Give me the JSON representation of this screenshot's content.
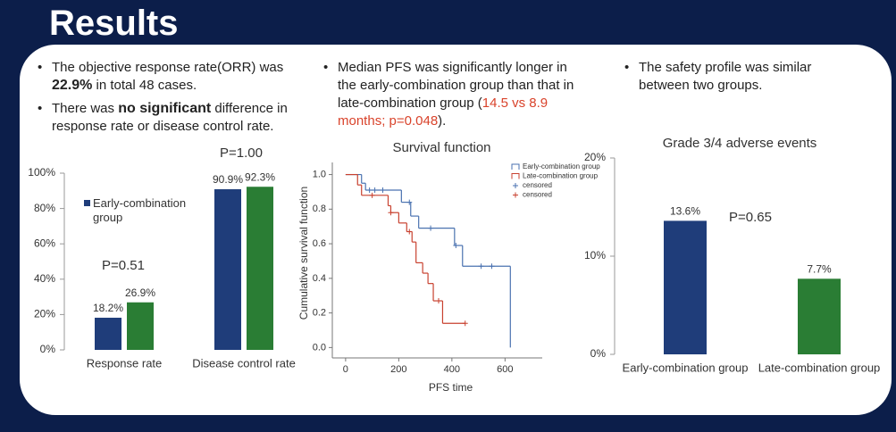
{
  "slide": {
    "title": "Results",
    "columns": [
      [
        {
          "segments": [
            {
              "text": "The objective response rate(ORR) was "
            },
            {
              "text": "22.9%",
              "bold": true
            },
            {
              "text": " in total 48 cases."
            }
          ]
        },
        {
          "segments": [
            {
              "text": "There was "
            },
            {
              "text": "no significant",
              "bold": true
            },
            {
              "text": " difference in response rate or disease control rate."
            }
          ]
        }
      ],
      [
        {
          "segments": [
            {
              "text": "Median PFS was significantly longer in the early-combination group than that in late-combination group ("
            },
            {
              "text": "14.5 vs 8.9 months; p=0.048",
              "color": "#d9432b"
            },
            {
              "text": ")."
            }
          ]
        }
      ],
      [
        {
          "segments": [
            {
              "text": "The safety profile was similar between two groups."
            }
          ]
        }
      ]
    ]
  },
  "chart_data": [
    {
      "type": "bar",
      "categories": [
        "Response rate",
        "Disease control rate"
      ],
      "series": [
        {
          "name": "Early-combination group",
          "color": "#1f3d7a",
          "values": [
            18.2,
            90.9
          ],
          "value_labels": [
            "18.2%",
            "90.9%"
          ]
        },
        {
          "color": "#2a7d34",
          "values": [
            26.9,
            92.3
          ],
          "value_labels": [
            "26.9%",
            "92.3%"
          ]
        }
      ],
      "ylim": [
        0,
        100
      ],
      "yticks": [
        {
          "value": 0,
          "label": "0%"
        },
        {
          "value": 20,
          "label": "20%"
        },
        {
          "value": 40,
          "label": "40%"
        },
        {
          "value": 60,
          "label": "60%"
        },
        {
          "value": 80,
          "label": "80%"
        },
        {
          "value": 100,
          "label": "100%"
        }
      ],
      "annotations": [
        "P=0.51",
        "P=1.00"
      ],
      "grid": false
    },
    {
      "type": "line",
      "title": "Survival function",
      "xlabel": "PFS time",
      "ylabel": "Cumulative survival function",
      "series": [
        {
          "name": "Early-combination group",
          "color": "#4a72b0",
          "style": "step",
          "x": [
            0,
            60,
            75,
            210,
            245,
            275,
            410,
            440,
            620
          ],
          "values": [
            1.0,
            0.95,
            0.91,
            0.84,
            0.76,
            0.69,
            0.59,
            0.47,
            0.0
          ]
        },
        {
          "name": "Late-combination group",
          "color": "#c8412f",
          "style": "step",
          "x": [
            0,
            45,
            60,
            160,
            170,
            200,
            230,
            250,
            265,
            290,
            310,
            330,
            365,
            450
          ],
          "values": [
            1.0,
            0.94,
            0.88,
            0.82,
            0.78,
            0.72,
            0.67,
            0.61,
            0.49,
            0.43,
            0.37,
            0.27,
            0.14,
            0.14
          ]
        },
        {
          "name": "censored",
          "color": "#4a72b0",
          "style": "censor",
          "x": [
            90,
            110,
            140,
            240,
            320,
            415,
            510,
            550
          ],
          "values": [
            0.91,
            0.91,
            0.91,
            0.84,
            0.69,
            0.59,
            0.47,
            0.47
          ]
        },
        {
          "name": "censored",
          "color": "#c8412f",
          "style": "censor",
          "x": [
            100,
            170,
            240,
            350,
            450
          ],
          "values": [
            0.88,
            0.78,
            0.67,
            0.27,
            0.14
          ]
        }
      ],
      "xlim": [
        -50,
        740
      ],
      "ylim": [
        -0.06,
        1.07
      ],
      "xticks": [
        0,
        200,
        400,
        600
      ],
      "yticks": [
        {
          "value": 0,
          "label": "0.0"
        },
        {
          "value": 0.2,
          "label": "0.2"
        },
        {
          "value": 0.4,
          "label": "0.4"
        },
        {
          "value": 0.6,
          "label": "0.6"
        },
        {
          "value": 0.8,
          "label": "0.8"
        },
        {
          "value": 1,
          "label": "1.0"
        }
      ],
      "grid": false
    },
    {
      "type": "bar",
      "title": "Grade 3/4 adverse events",
      "categories": [
        "Early-combination group",
        "Late-combination group"
      ],
      "values": [
        13.6,
        7.7
      ],
      "value_labels": [
        "13.6%",
        "7.7%"
      ],
      "colors": [
        "#1f3d7a",
        "#2a7d34"
      ],
      "ylim": [
        0,
        20
      ],
      "yticks": [
        {
          "value": 0,
          "label": "0%"
        },
        {
          "value": 10,
          "label": "10%"
        },
        {
          "value": 20,
          "label": "20%"
        }
      ],
      "annotations": [
        "P=0.65"
      ],
      "grid": false
    }
  ]
}
